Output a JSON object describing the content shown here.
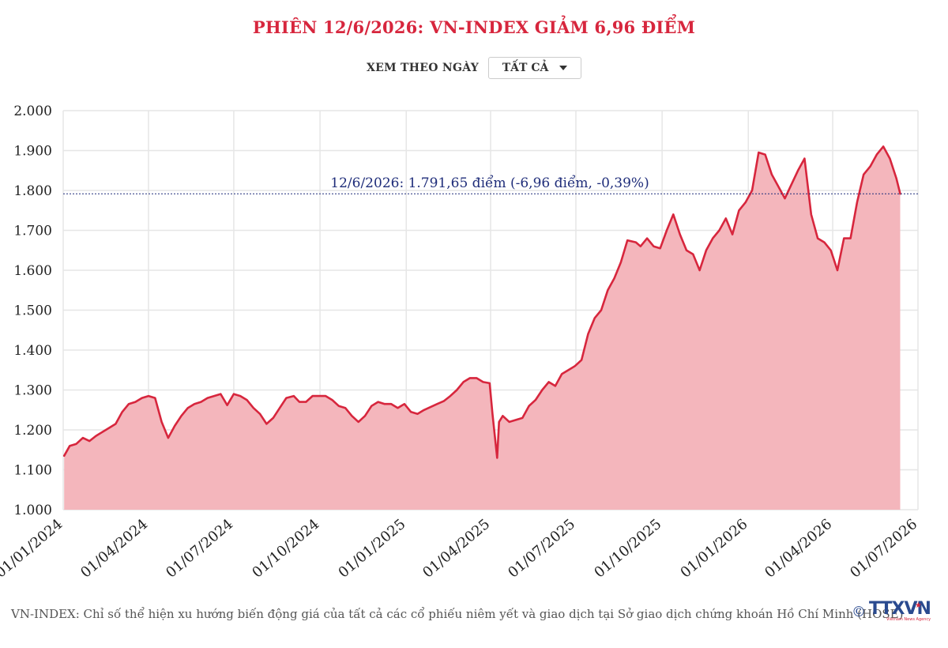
{
  "header": {
    "title": "PHIÊN 12/6/2026: VN-INDEX GIẢM 6,96 ĐIỂM"
  },
  "filter": {
    "label": "XEM THEO NGÀY",
    "selected": "TẤT CẢ"
  },
  "footer": {
    "note": "VN-INDEX: Chỉ số thể hiện xu hướng biến động giá của tất cả các cổ phiếu niêm yết và giao dịch tại Sở giao dịch chứng khoán Hồ Chí Minh (HOSE)",
    "copyright_symbol": "©",
    "logo_text": "TTXVN",
    "logo_subtext": "Vietnam News Agency"
  },
  "colors": {
    "title": "#d7263d",
    "line": "#d7263d",
    "area": "#f4b6bc",
    "reference_line": "#1f2d7a",
    "grid": "#e6e6e6"
  },
  "chart_data": {
    "type": "area",
    "title": "PHIÊN 12/6/2026: VN-INDEX GIẢM 6,96 ĐIỂM",
    "xlabel": "",
    "ylabel": "",
    "ylim": [
      1000,
      2000
    ],
    "xlim": [
      "2024-01-01",
      "2026-07-01"
    ],
    "y_ticks": [
      1000,
      1100,
      1200,
      1300,
      1400,
      1500,
      1600,
      1700,
      1800,
      1900,
      2000
    ],
    "y_tick_labels": [
      "1.000",
      "1.100",
      "1.200",
      "1.300",
      "1.400",
      "1.500",
      "1.600",
      "1.700",
      "1.800",
      "1.900",
      "2.000"
    ],
    "x_ticks": [
      "2024-01-01",
      "2024-04-01",
      "2024-07-01",
      "2024-10-01",
      "2025-01-01",
      "2025-04-01",
      "2025-07-01",
      "2025-10-01",
      "2026-01-01",
      "2026-04-01",
      "2026-07-01"
    ],
    "x_tick_labels": [
      "01/01/2024",
      "01/04/2024",
      "01/07/2024",
      "01/10/2024",
      "01/01/2025",
      "01/04/2025",
      "01/07/2025",
      "01/10/2025",
      "01/01/2026",
      "01/04/2026",
      "01/07/2026"
    ],
    "grid": true,
    "reference_line": {
      "date": "2026-06-12",
      "value": 1791.65,
      "label": "12/6/2026: 1.791,65 điểm (-6,96 điểm, -0,39%)"
    },
    "series": [
      {
        "x": [
          "2024-01-02",
          "2024-01-08",
          "2024-01-15",
          "2024-01-22",
          "2024-01-29",
          "2024-02-05",
          "2024-02-19",
          "2024-02-26",
          "2024-03-04",
          "2024-03-11",
          "2024-03-18",
          "2024-03-25",
          "2024-04-01",
          "2024-04-08",
          "2024-04-15",
          "2024-04-22",
          "2024-04-29",
          "2024-05-06",
          "2024-05-13",
          "2024-05-20",
          "2024-05-27",
          "2024-06-03",
          "2024-06-10",
          "2024-06-17",
          "2024-06-24",
          "2024-07-01",
          "2024-07-08",
          "2024-07-15",
          "2024-07-22",
          "2024-07-29",
          "2024-08-05",
          "2024-08-12",
          "2024-08-19",
          "2024-08-26",
          "2024-09-03",
          "2024-09-09",
          "2024-09-16",
          "2024-09-23",
          "2024-09-30",
          "2024-10-07",
          "2024-10-14",
          "2024-10-21",
          "2024-10-28",
          "2024-11-04",
          "2024-11-11",
          "2024-11-18",
          "2024-11-25",
          "2024-12-02",
          "2024-12-09",
          "2024-12-16",
          "2024-12-23",
          "2024-12-30",
          "2025-01-06",
          "2025-01-13",
          "2025-01-20",
          "2025-02-03",
          "2025-02-10",
          "2025-02-17",
          "2025-02-24",
          "2025-03-03",
          "2025-03-10",
          "2025-03-17",
          "2025-03-24",
          "2025-03-31",
          "2025-04-03",
          "2025-04-08",
          "2025-04-10",
          "2025-04-14",
          "2025-04-21",
          "2025-05-05",
          "2025-05-12",
          "2025-05-19",
          "2025-05-26",
          "2025-06-02",
          "2025-06-09",
          "2025-06-16",
          "2025-06-23",
          "2025-06-30",
          "2025-07-07",
          "2025-07-14",
          "2025-07-21",
          "2025-07-28",
          "2025-08-04",
          "2025-08-11",
          "2025-08-18",
          "2025-08-25",
          "2025-09-03",
          "2025-09-08",
          "2025-09-15",
          "2025-09-22",
          "2025-09-29",
          "2025-10-06",
          "2025-10-13",
          "2025-10-20",
          "2025-10-27",
          "2025-11-03",
          "2025-11-10",
          "2025-11-17",
          "2025-11-24",
          "2025-12-01",
          "2025-12-08",
          "2025-12-15",
          "2025-12-22",
          "2025-12-29",
          "2026-01-05",
          "2026-01-12",
          "2026-01-19",
          "2026-01-26",
          "2026-02-02",
          "2026-02-09",
          "2026-02-23",
          "2026-03-02",
          "2026-03-09",
          "2026-03-16",
          "2026-03-23",
          "2026-03-30",
          "2026-04-06",
          "2026-04-13",
          "2026-04-20",
          "2026-04-27",
          "2026-05-04",
          "2026-05-11",
          "2026-05-18",
          "2026-05-25",
          "2026-06-01",
          "2026-06-08",
          "2026-06-12"
        ],
        "values": [
          1135,
          1160,
          1165,
          1180,
          1172,
          1185,
          1205,
          1215,
          1245,
          1265,
          1270,
          1280,
          1285,
          1280,
          1220,
          1180,
          1210,
          1235,
          1255,
          1265,
          1270,
          1280,
          1285,
          1290,
          1262,
          1290,
          1285,
          1275,
          1255,
          1240,
          1215,
          1230,
          1255,
          1280,
          1285,
          1270,
          1270,
          1285,
          1285,
          1285,
          1275,
          1260,
          1255,
          1235,
          1220,
          1235,
          1260,
          1270,
          1265,
          1265,
          1255,
          1265,
          1245,
          1240,
          1250,
          1265,
          1272,
          1285,
          1300,
          1320,
          1330,
          1330,
          1320,
          1317,
          1240,
          1130,
          1220,
          1235,
          1220,
          1230,
          1260,
          1275,
          1300,
          1320,
          1310,
          1340,
          1350,
          1360,
          1375,
          1440,
          1480,
          1500,
          1550,
          1580,
          1620,
          1675,
          1670,
          1660,
          1680,
          1660,
          1655,
          1700,
          1740,
          1690,
          1650,
          1640,
          1600,
          1650,
          1680,
          1700,
          1730,
          1690,
          1750,
          1770,
          1800,
          1895,
          1890,
          1840,
          1810,
          1780,
          1850,
          1880,
          1740,
          1680,
          1670,
          1650,
          1600,
          1680,
          1680,
          1770,
          1840,
          1860,
          1890,
          1910,
          1880,
          1830,
          1791.65
        ]
      }
    ]
  }
}
